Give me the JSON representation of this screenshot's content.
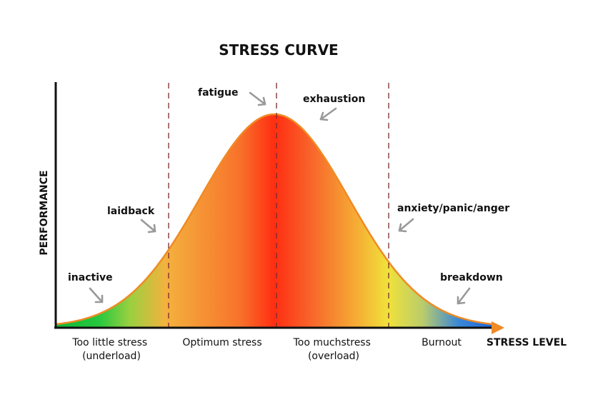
{
  "title": "STRESS CURVE",
  "axes": {
    "y_label": "PERFORMANCE",
    "x_label": "STRESS LEVEL"
  },
  "zones": [
    {
      "label_line1": "Too little stress",
      "label_line2": "(underload)"
    },
    {
      "label_line1": "Optimum stress",
      "label_line2": ""
    },
    {
      "label_line1": "Too muchstress",
      "label_line2": "(overload)"
    },
    {
      "label_line1": "Burnout",
      "label_line2": ""
    }
  ],
  "annotations": {
    "inactive": "inactive",
    "laidback": "laidback",
    "fatigue": "fatigue",
    "exhaustion": "exhaustion",
    "anxiety": "anxiety/panic/anger",
    "breakdown": "breakdown"
  },
  "colors": {
    "curve_outline": "#f08a24",
    "axis": "#111111",
    "arrow": "#999999",
    "divider": "#7a2b2b",
    "gradient_green": "#22c84a",
    "gradient_orange": "#f5a623",
    "gradient_red": "#ff2a10",
    "gradient_yellow": "#f2e63a",
    "gradient_blue": "#1e73e8"
  }
}
